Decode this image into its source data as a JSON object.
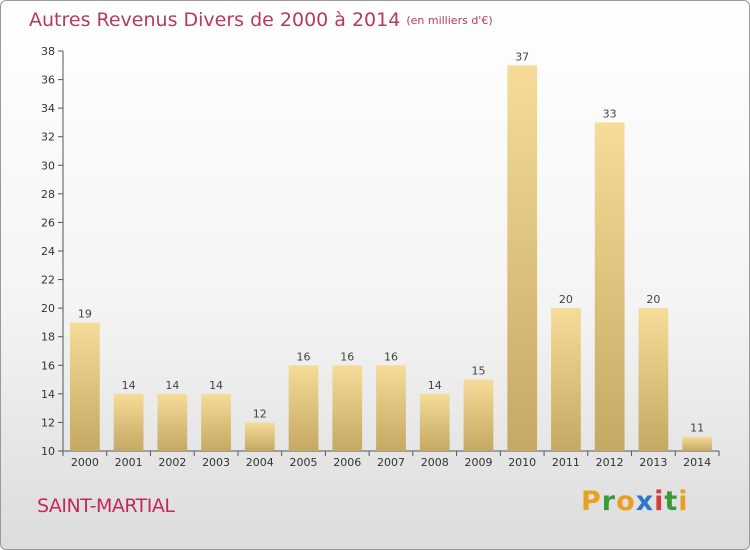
{
  "title": {
    "main": "Autres Revenus Divers de 2000 à 2014",
    "unit": "(en milliers d'€)"
  },
  "town": "SAINT-MARTIAL",
  "logo": {
    "text": "Proxiti",
    "letters": [
      {
        "char": "P",
        "color": "#e8a020"
      },
      {
        "char": "r",
        "color": "#3a9a3a"
      },
      {
        "char": "o",
        "color": "#e8a020"
      },
      {
        "char": "x",
        "color": "#2a7ac8"
      },
      {
        "char": "i",
        "color": "#d83a3a"
      },
      {
        "char": "t",
        "color": "#3a9a3a"
      },
      {
        "char": "i",
        "color": "#e8a020"
      }
    ]
  },
  "colors": {
    "bar_light": "#f6dc98",
    "bar_dark": "#c4a864",
    "axis": "#555555",
    "grid": "#bbbbbb"
  },
  "chart_data": {
    "type": "bar",
    "categories": [
      "2000",
      "2001",
      "2002",
      "2003",
      "2004",
      "2005",
      "2006",
      "2007",
      "2008",
      "2009",
      "2010",
      "2011",
      "2012",
      "2013",
      "2014"
    ],
    "values": [
      19,
      14,
      14,
      14,
      12,
      16,
      16,
      16,
      14,
      15,
      37,
      20,
      33,
      20,
      11
    ],
    "title": "Autres Revenus Divers de 2000 à 2014",
    "xlabel": "",
    "ylabel": "",
    "ylim": [
      10,
      38
    ],
    "yticks": [
      10,
      12,
      14,
      16,
      18,
      20,
      22,
      24,
      26,
      28,
      30,
      32,
      34,
      36,
      38
    ],
    "grid": false,
    "data_labels": true
  }
}
